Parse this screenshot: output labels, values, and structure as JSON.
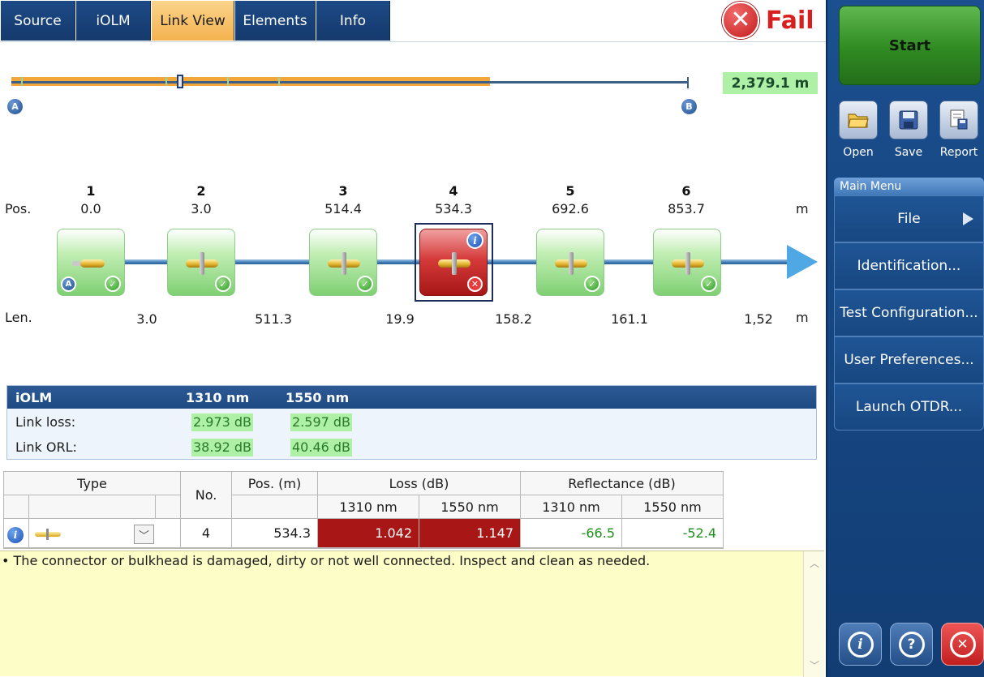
{
  "tabs": [
    {
      "label": "Source"
    },
    {
      "label": "iOLM"
    },
    {
      "label": "Link View"
    },
    {
      "label": "Elements"
    },
    {
      "label": "Info"
    }
  ],
  "status": {
    "label": "Fail",
    "icon": "x-circle-icon",
    "color": "#d71f1f"
  },
  "link": {
    "total_length": "2,379.1 m",
    "end_a": "A",
    "end_b": "B",
    "pos_label": "Pos.",
    "len_label": "Len.",
    "unit": "m",
    "elements": [
      {
        "no": "1",
        "pos": "0.0",
        "status": "pass"
      },
      {
        "no": "2",
        "pos": "3.0",
        "status": "pass"
      },
      {
        "no": "3",
        "pos": "514.4",
        "status": "pass"
      },
      {
        "no": "4",
        "pos": "534.3",
        "status": "fail"
      },
      {
        "no": "5",
        "pos": "692.6",
        "status": "pass"
      },
      {
        "no": "6",
        "pos": "853.7",
        "status": "pass"
      }
    ],
    "lengths": [
      "3.0",
      "511.3",
      "19.9",
      "158.2",
      "161.1",
      "1,52"
    ]
  },
  "iolm_summary": {
    "header": "iOLM",
    "wl1": "1310 nm",
    "wl2": "1550 nm",
    "rows": [
      {
        "label": "Link loss:",
        "v1": "2.973 dB",
        "v2": "2.597 dB"
      },
      {
        "label": "Link ORL:",
        "v1": "38.92 dB",
        "v2": "40.46 dB"
      }
    ]
  },
  "detail": {
    "headers": {
      "type": "Type",
      "no": "No.",
      "pos": "Pos. (m)",
      "loss": "Loss (dB)",
      "refl": "Reflectance (dB)",
      "wl1": "1310 nm",
      "wl2": "1550 nm"
    },
    "row": {
      "no": "4",
      "pos": "534.3",
      "loss_1310": "1.042",
      "loss_1550": "1.147",
      "refl_1310": "-66.5",
      "refl_1550": "-52.4"
    }
  },
  "message": "• The connector or bulkhead is damaged, dirty or not well connected. Inspect and clean as needed.",
  "sidebar": {
    "start": "Start",
    "tools": [
      {
        "label": "Open",
        "icon": "folder-open-icon"
      },
      {
        "label": "Save",
        "icon": "floppy-disk-icon"
      },
      {
        "label": "Report",
        "icon": "report-icon"
      }
    ],
    "menu_title": "Main Menu",
    "menu": [
      {
        "label": "File"
      },
      {
        "label": "Identification..."
      },
      {
        "label": "Test Configuration..."
      },
      {
        "label": "User Preferences..."
      },
      {
        "label": "Launch OTDR..."
      }
    ]
  },
  "colors": {
    "fail": "#a81616",
    "pass_value_bg": "#aef0a6",
    "accent_tab": "#f4b24f",
    "sidebar": "#1b4f8f"
  }
}
